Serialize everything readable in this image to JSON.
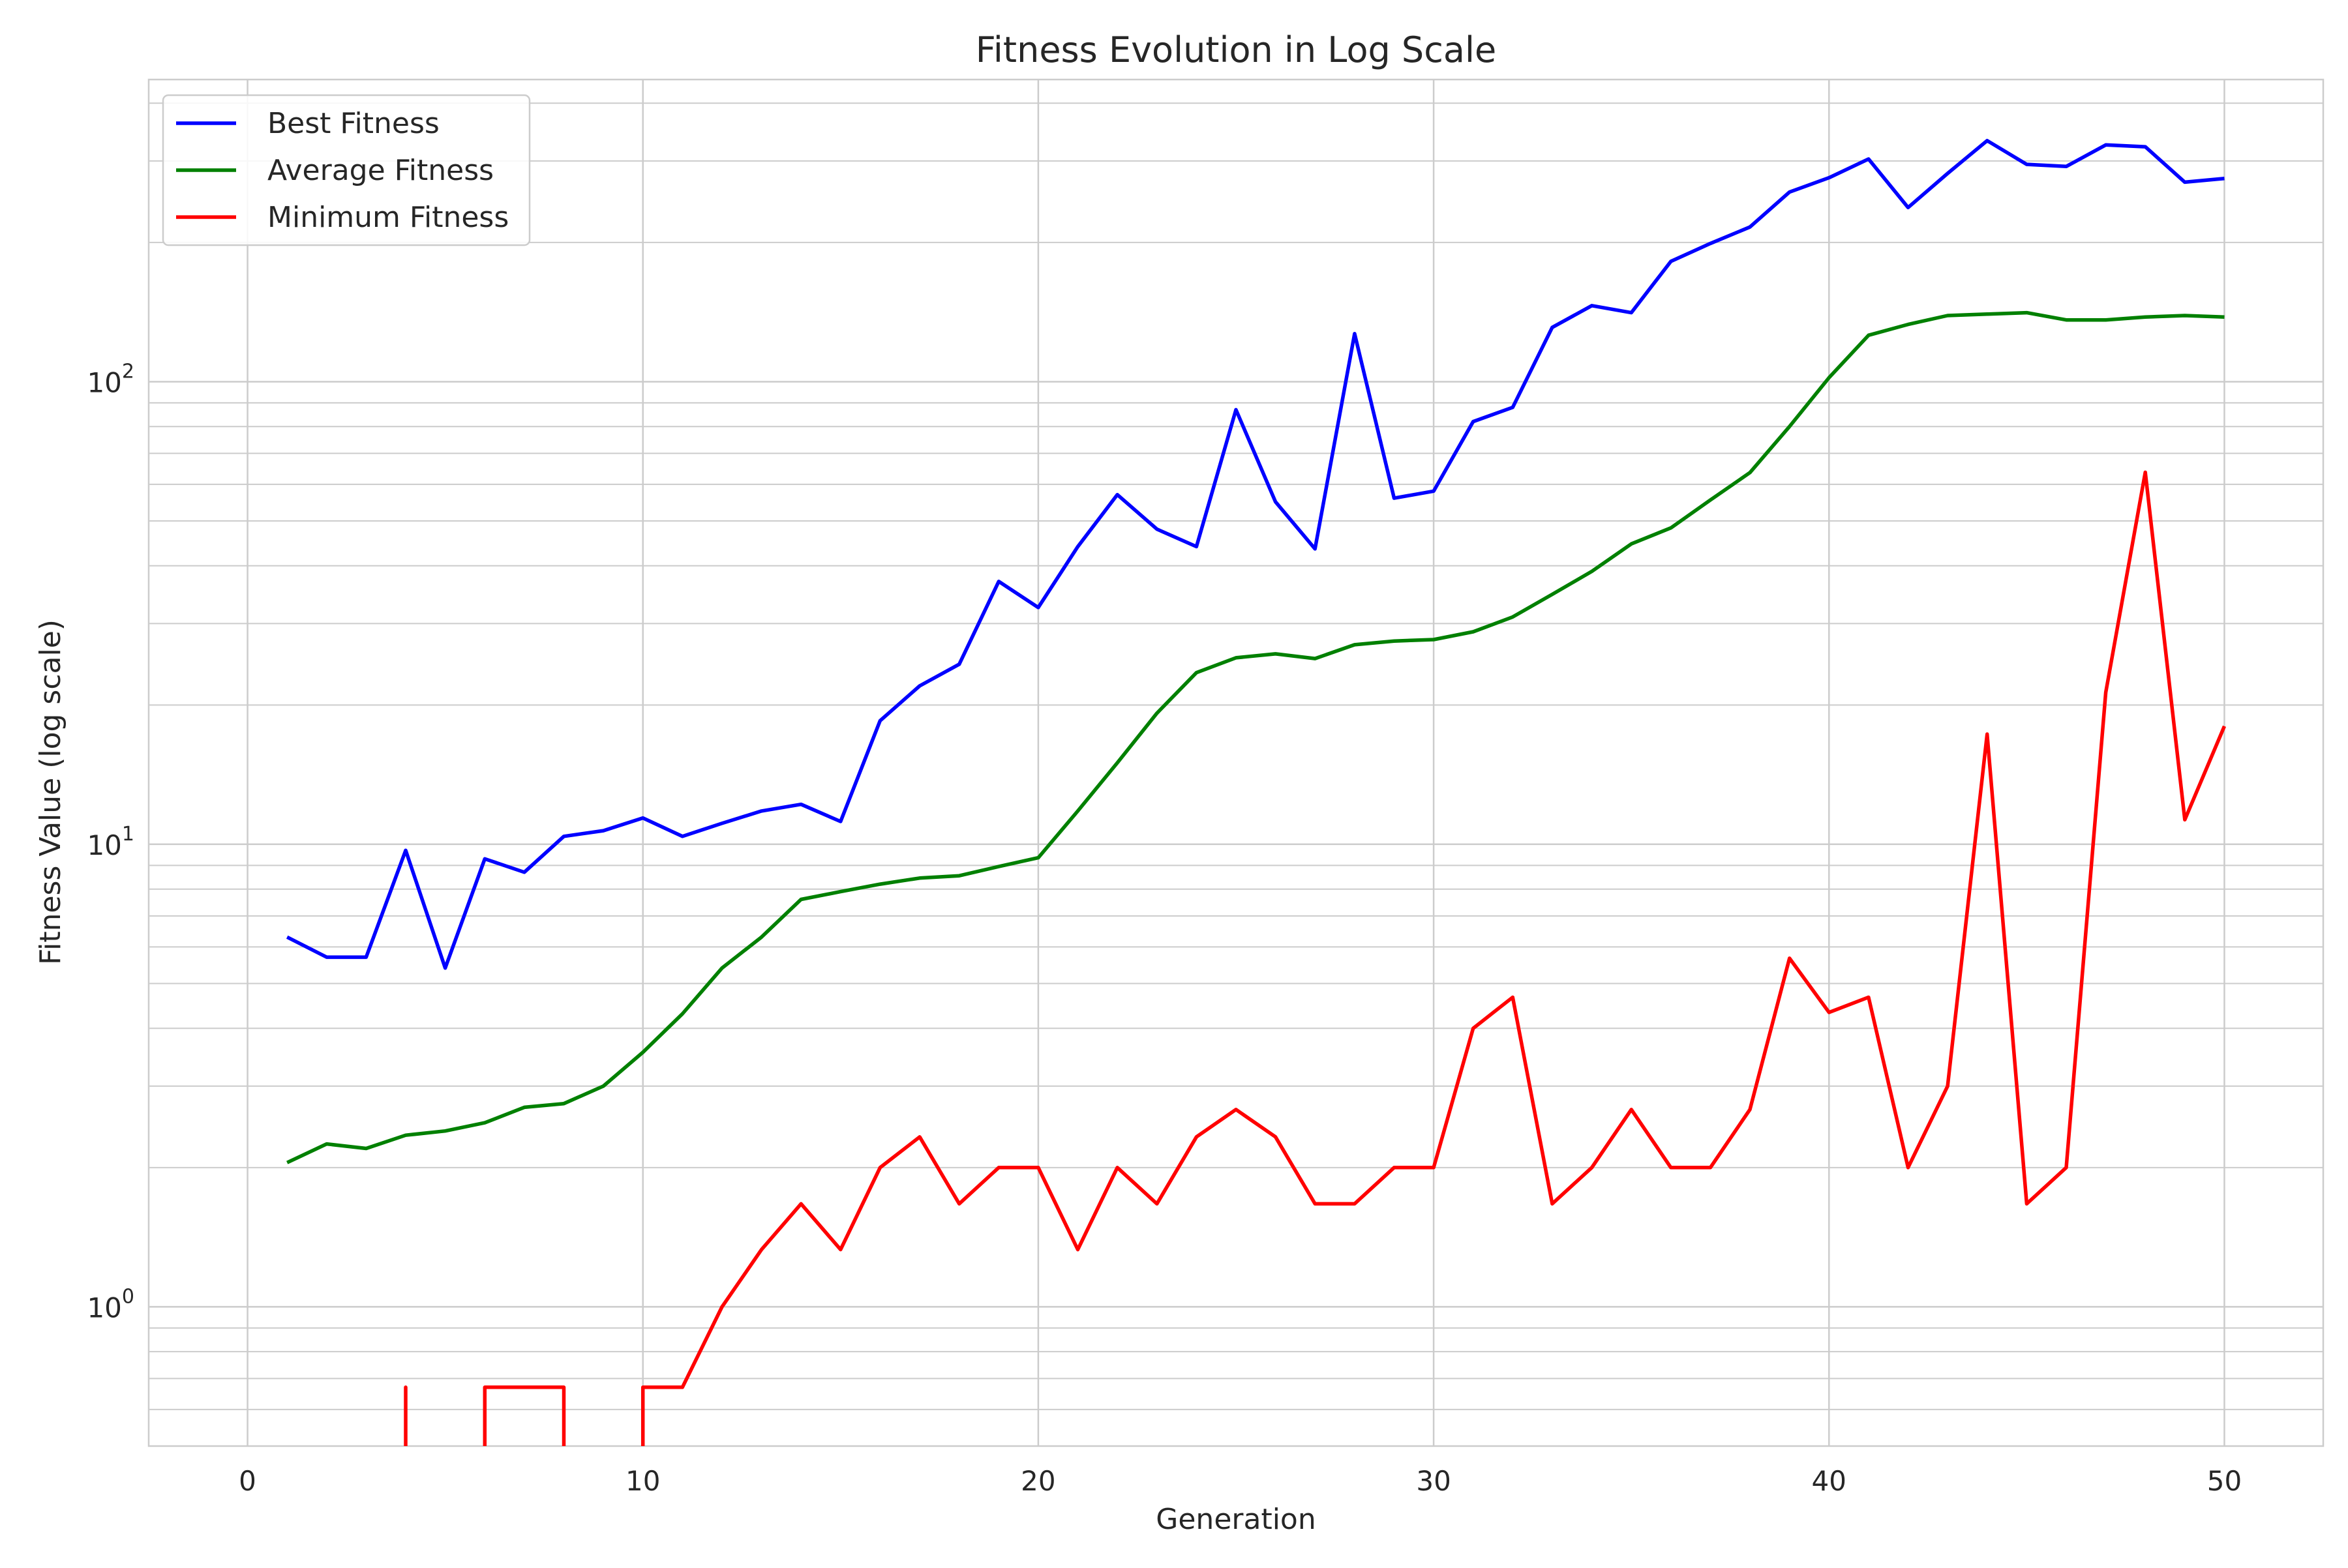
{
  "chart_data": {
    "type": "line",
    "title": "Fitness Evolution in Log Scale",
    "xlabel": "Generation",
    "ylabel": "Fitness Value (log scale)",
    "yscale": "log",
    "xlim": [
      -2.5,
      52.5
    ],
    "ylim": [
      0.5,
      450
    ],
    "grid": true,
    "legend_position": "top-left",
    "x_ticks": [
      0,
      10,
      20,
      30,
      40,
      50
    ],
    "x_tick_labels": [
      "0",
      "10",
      "20",
      "30",
      "40",
      "50"
    ],
    "y_major_ticks": [
      {
        "value": 1,
        "base": "10",
        "exp": "0"
      },
      {
        "value": 10,
        "base": "10",
        "exp": "1"
      },
      {
        "value": 100,
        "base": "10",
        "exp": "2"
      }
    ],
    "x": [
      1,
      2,
      3,
      4,
      5,
      6,
      7,
      8,
      9,
      10,
      11,
      12,
      13,
      14,
      15,
      16,
      17,
      18,
      19,
      20,
      21,
      22,
      23,
      24,
      25,
      26,
      27,
      28,
      29,
      30,
      31,
      32,
      33,
      34,
      35,
      36,
      37,
      38,
      39,
      40,
      41,
      42,
      43,
      44,
      45,
      46,
      47,
      48,
      49,
      50
    ],
    "series": [
      {
        "name": "Best Fitness",
        "color": "#0000ff",
        "values": [
          6.3,
          5.7,
          5.7,
          9.7,
          5.4,
          9.3,
          8.7,
          10.4,
          10.7,
          11.4,
          10.4,
          11.1,
          11.8,
          12.2,
          11.2,
          18.5,
          22,
          24.5,
          37,
          32.5,
          44,
          57,
          48,
          44,
          87,
          55,
          43.5,
          127,
          56,
          58,
          82,
          88,
          131,
          146,
          141,
          182,
          199,
          216,
          257,
          276,
          303,
          238,
          282,
          332,
          295,
          292,
          325,
          322,
          270,
          275
        ]
      },
      {
        "name": "Average Fitness",
        "color": "#008000",
        "values": [
          2.05,
          2.25,
          2.2,
          2.35,
          2.4,
          2.5,
          2.7,
          2.75,
          3.0,
          3.55,
          4.3,
          5.4,
          6.3,
          7.6,
          7.9,
          8.2,
          8.45,
          8.55,
          8.95,
          9.35,
          11.8,
          15,
          19.2,
          23.5,
          25.3,
          25.8,
          25.2,
          27,
          27.5,
          27.7,
          28.8,
          31,
          34.7,
          38.9,
          44.6,
          48.3,
          55.5,
          63.6,
          80,
          102,
          126,
          133,
          139,
          140,
          141,
          136,
          136,
          138,
          139,
          138
        ]
      },
      {
        "name": "Minimum Fitness",
        "color": "#ff0000",
        "values": [
          null,
          null,
          null,
          0.67,
          null,
          0.67,
          0.67,
          0.67,
          null,
          0.67,
          0.67,
          1.0,
          1.33,
          1.67,
          1.33,
          2.0,
          2.33,
          1.67,
          2.0,
          2.0,
          1.33,
          2.0,
          1.67,
          2.33,
          2.67,
          2.33,
          1.67,
          1.67,
          2.0,
          2.0,
          4.0,
          4.67,
          1.67,
          2.0,
          2.67,
          2.0,
          2.0,
          2.67,
          5.67,
          4.33,
          4.67,
          2.0,
          3.0,
          17.3,
          1.67,
          2.0,
          21.3,
          63.7,
          11.3,
          18.0
        ]
      }
    ]
  }
}
